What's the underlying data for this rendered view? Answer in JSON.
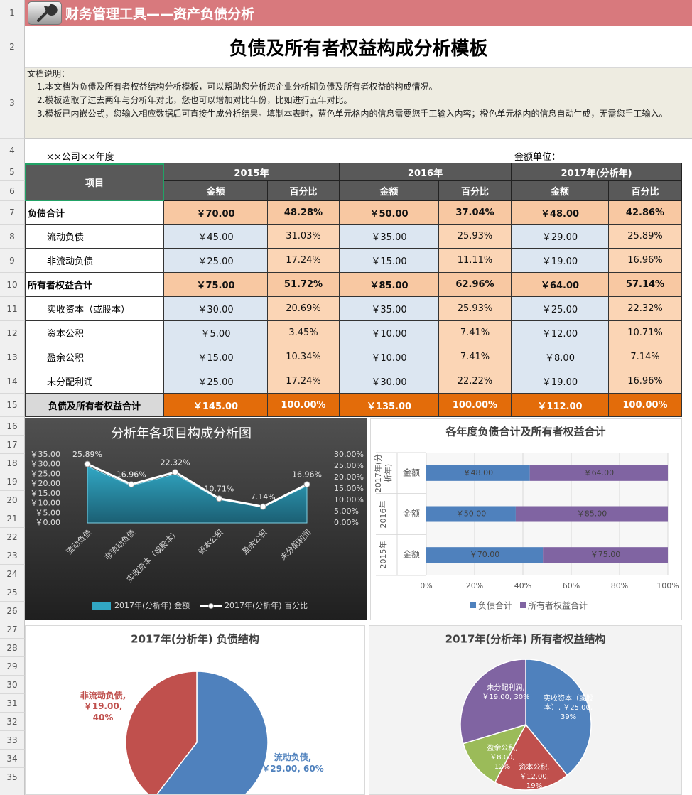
{
  "app_header": {
    "title": "财务管理工具——资产负债分析"
  },
  "row_numbers": [
    "1",
    "2",
    "3",
    "4",
    "5",
    "6",
    "7",
    "8",
    "9",
    "10",
    "11",
    "12",
    "13",
    "14",
    "15",
    "16",
    "17",
    "18",
    "19",
    "20",
    "21",
    "22",
    "23",
    "24",
    "25",
    "26",
    "27",
    "28",
    "29",
    "30",
    "31",
    "32",
    "33",
    "34",
    "35"
  ],
  "sheet": {
    "title": "负债及所有者权益构成分析模板",
    "notes": {
      "heading": "文档说明：",
      "lines": [
        "1.本文档为负债及所有者权益结构分析模板，可以帮助您分析您企业分析期负债及所有者权益的构成情况。",
        "2.模板选取了过去两年与分析年对比，您也可以增加对比年份，比如进行五年对比。",
        "3.模板已内嵌公式，您输入相应数据后可直接生成分析结果。填制本表时，蓝色单元格内的信息需要您手工输入内容；橙色单元格内的信息自动生成，无需您手工输入。"
      ]
    },
    "company": "××公司××年度",
    "unit": "金额单位：",
    "table": {
      "item_header": "项目",
      "years": [
        "2015年",
        "2016年",
        "2017年(分析年)"
      ],
      "subheaders": [
        "金额",
        "百分比",
        "金额",
        "百分比",
        "金额",
        "百分比"
      ],
      "rows": [
        {
          "label": "负债合计",
          "cells": [
            "￥70.00",
            "48.28%",
            "￥50.00",
            "37.04%",
            "￥48.00",
            "42.86%"
          ]
        },
        {
          "label": "流动负债",
          "cells": [
            "￥45.00",
            "31.03%",
            "￥35.00",
            "25.93%",
            "￥29.00",
            "25.89%"
          ]
        },
        {
          "label": "非流动负债",
          "cells": [
            "￥25.00",
            "17.24%",
            "￥15.00",
            "11.11%",
            "￥19.00",
            "16.96%"
          ]
        },
        {
          "label": "所有者权益合计",
          "cells": [
            "￥75.00",
            "51.72%",
            "￥85.00",
            "62.96%",
            "￥64.00",
            "57.14%"
          ]
        },
        {
          "label": "实收资本（或股本）",
          "cells": [
            "￥30.00",
            "20.69%",
            "￥35.00",
            "25.93%",
            "￥25.00",
            "22.32%"
          ]
        },
        {
          "label": "资本公积",
          "cells": [
            "￥5.00",
            "3.45%",
            "￥10.00",
            "7.41%",
            "￥12.00",
            "10.71%"
          ]
        },
        {
          "label": "盈余公积",
          "cells": [
            "￥15.00",
            "10.34%",
            "￥10.00",
            "7.41%",
            "￥8.00",
            "7.14%"
          ]
        },
        {
          "label": "未分配利润",
          "cells": [
            "￥25.00",
            "17.24%",
            "￥30.00",
            "22.22%",
            "￥19.00",
            "16.96%"
          ]
        },
        {
          "label": "负债及所有者权益合计",
          "cells": [
            "￥145.00",
            "100.00%",
            "￥135.00",
            "100.00%",
            "￥112.00",
            "100.00%"
          ]
        }
      ]
    }
  },
  "charts": [
    {
      "type": "combo",
      "title": "分析年各项目构成分析图",
      "categories": [
        "流动负债",
        "非流动负债",
        "实收资本（或股本）",
        "资本公积",
        "盈余公积",
        "未分配利润"
      ],
      "series": [
        {
          "name": "2017年(分析年) 金额",
          "type": "area",
          "color": "#31a7c4",
          "values": [
            29,
            19,
            25,
            12,
            8,
            19
          ]
        },
        {
          "name": "2017年(分析年) 百分比",
          "type": "line",
          "axis": "y2",
          "color": "#ffffff",
          "values": [
            25.89,
            16.96,
            22.32,
            10.71,
            7.14,
            16.96
          ],
          "value_labels": [
            "25.89%",
            "16.96%",
            "22.32%",
            "10.71%",
            "7.14%",
            "16.96%"
          ]
        }
      ],
      "ylim": [
        0,
        35
      ],
      "yticks": [
        {
          "value": 0,
          "label": "￥0.00"
        },
        {
          "value": 5,
          "label": "￥5.00"
        },
        {
          "value": 10,
          "label": "￥10.00"
        },
        {
          "value": 15,
          "label": "￥15.00"
        },
        {
          "value": 20,
          "label": "￥20.00"
        },
        {
          "value": 25,
          "label": "￥25.00"
        },
        {
          "value": 30,
          "label": "￥30.00"
        },
        {
          "value": 35,
          "label": "￥35.00"
        }
      ],
      "y2lim": [
        0,
        30
      ],
      "y2ticks": [
        {
          "value": 0,
          "label": "0.00%"
        },
        {
          "value": 5,
          "label": "5.00%"
        },
        {
          "value": 10,
          "label": "10.00%"
        },
        {
          "value": 15,
          "label": "15.00%"
        },
        {
          "value": 20,
          "label": "20.00%"
        },
        {
          "value": 25,
          "label": "25.00%"
        },
        {
          "value": 30,
          "label": "30.00%"
        }
      ]
    },
    {
      "type": "bar",
      "title": "各年度负债合计及所有者权益合计",
      "categories": [
        "2015年",
        "2016年",
        "2017年(分析年)"
      ],
      "sub_category": "金额",
      "series": [
        {
          "name": "负债合计",
          "color": "#4f81bd",
          "values": [
            70,
            50,
            48
          ],
          "value_labels": [
            "￥70.00",
            "￥50.00",
            "￥48.00"
          ]
        },
        {
          "name": "所有者权益合计",
          "color": "#8064a2",
          "values": [
            75,
            85,
            64
          ],
          "value_labels": [
            "￥75.00",
            "￥85.00",
            "￥64.00"
          ]
        }
      ],
      "xlim": [
        0,
        100
      ],
      "xticks": [
        {
          "value": 0,
          "label": "0%"
        },
        {
          "value": 20,
          "label": "20%"
        },
        {
          "value": 40,
          "label": "40%"
        },
        {
          "value": 60,
          "label": "60%"
        },
        {
          "value": 80,
          "label": "80%"
        },
        {
          "value": 100,
          "label": "100%"
        }
      ]
    },
    {
      "type": "pie",
      "title": "2017年(分析年) 负债结构",
      "categories": [
        "流动负债",
        "非流动负债"
      ],
      "values": [
        29,
        19
      ],
      "colors": [
        "#4f81bd",
        "#c0504d"
      ],
      "value_labels": [
        "流动负债, ￥29.00, 60%",
        "非流动负债, ￥19.00, 40%"
      ]
    },
    {
      "type": "pie",
      "title": "2017年(分析年) 所有者权益结构",
      "categories": [
        "实收资本（或股本）",
        "资本公积",
        "盈余公积",
        "未分配利润"
      ],
      "values": [
        25,
        12,
        8,
        19
      ],
      "colors": [
        "#4f81bd",
        "#c0504d",
        "#9bbb59",
        "#8064a2"
      ],
      "value_labels": [
        "实收资本（或股本）, ￥25.00, 39%",
        "资本公积, ￥12.00, 19%",
        "盈余公积, ￥8.00, 12%",
        "未分配利润, ￥19.00, 30%"
      ]
    }
  ]
}
